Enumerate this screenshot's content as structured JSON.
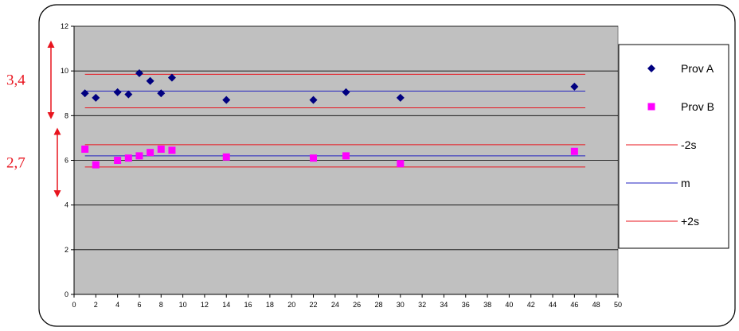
{
  "chart_data": {
    "type": "scatter",
    "title": "",
    "xlabel": "",
    "ylabel": "",
    "xlim": [
      0,
      50
    ],
    "ylim": [
      0,
      12
    ],
    "x_ticks": [
      "0",
      "2",
      "4",
      "6",
      "8",
      "10",
      "12",
      "14",
      "16",
      "18",
      "20",
      "22",
      "24",
      "26",
      "28",
      "30",
      "32",
      "34",
      "36",
      "38",
      "40",
      "42",
      "44",
      "46",
      "48",
      "50"
    ],
    "y_ticks": [
      "0",
      "2",
      "4",
      "6",
      "8",
      "10",
      "12"
    ],
    "grid": "horizontal",
    "plot_background": "#c0c0c0",
    "legend_position": "right",
    "series": [
      {
        "name": "Prov A",
        "marker": "diamond",
        "color": "#000080",
        "x": [
          1,
          2,
          4,
          5,
          6,
          7,
          8,
          9,
          14,
          22,
          25,
          30,
          46
        ],
        "y": [
          9.0,
          8.8,
          9.05,
          8.95,
          9.9,
          9.55,
          9.0,
          9.7,
          8.7,
          8.7,
          9.05,
          8.8,
          9.3
        ]
      },
      {
        "name": "Prov B",
        "marker": "square",
        "color": "#ff00ff",
        "x": [
          1,
          2,
          4,
          5,
          6,
          7,
          8,
          9,
          14,
          22,
          25,
          30,
          46
        ],
        "y": [
          6.5,
          5.8,
          6.0,
          6.1,
          6.2,
          6.35,
          6.5,
          6.45,
          6.15,
          6.1,
          6.2,
          5.85,
          6.4
        ]
      }
    ],
    "reference_lines": [
      {
        "name": "-2s",
        "color": "#e8141e",
        "x_range": [
          1,
          47
        ],
        "values": [
          9.85,
          6.7
        ]
      },
      {
        "name": "m",
        "color": "#2020c0",
        "x_range": [
          1,
          47
        ],
        "values": [
          9.1,
          6.2
        ]
      },
      {
        "name": "+2s",
        "color": "#e8141e",
        "x_range": [
          1,
          47
        ],
        "values": [
          8.35,
          5.7
        ]
      }
    ],
    "annotations": [
      {
        "text": "3,4",
        "color": "#e8141e",
        "arrow_y_range": [
          8,
          11.2
        ]
      },
      {
        "text": "2,7",
        "color": "#e8141e",
        "arrow_y_range": [
          4.5,
          7.3
        ]
      }
    ]
  }
}
